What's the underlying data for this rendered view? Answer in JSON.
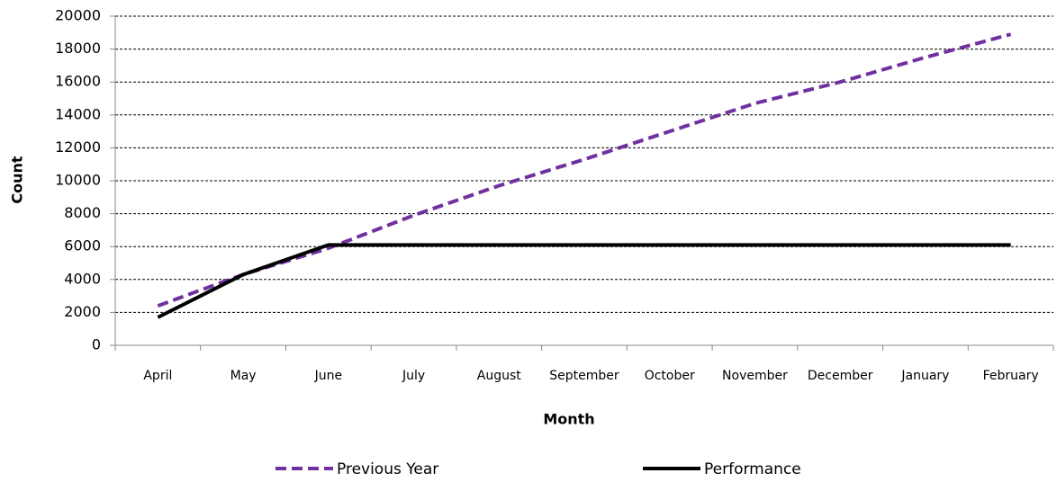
{
  "chart_data": {
    "type": "line",
    "x_label": "Month",
    "y_label": "Count",
    "categories": [
      "April",
      "May",
      "June",
      "July",
      "August",
      "September",
      "October",
      "November",
      "December",
      "January",
      "February"
    ],
    "series": [
      {
        "name": "Previous Year",
        "color": "#7030a0",
        "line_style": "dashed",
        "values": [
          2400,
          4300,
          5900,
          7900,
          9700,
          11300,
          13000,
          14700,
          16000,
          17500,
          18900
        ]
      },
      {
        "name": "Performance",
        "color": "#000000",
        "line_style": "solid",
        "values": [
          1700,
          4300,
          6100,
          6100,
          6100,
          6100,
          6100,
          6100,
          6100,
          6100,
          6100
        ]
      }
    ],
    "ylim": [
      0,
      20000
    ],
    "yticks": [
      0,
      2000,
      4000,
      6000,
      8000,
      10000,
      12000,
      14000,
      16000,
      18000,
      20000
    ],
    "grid": true,
    "legend": "bottom"
  }
}
